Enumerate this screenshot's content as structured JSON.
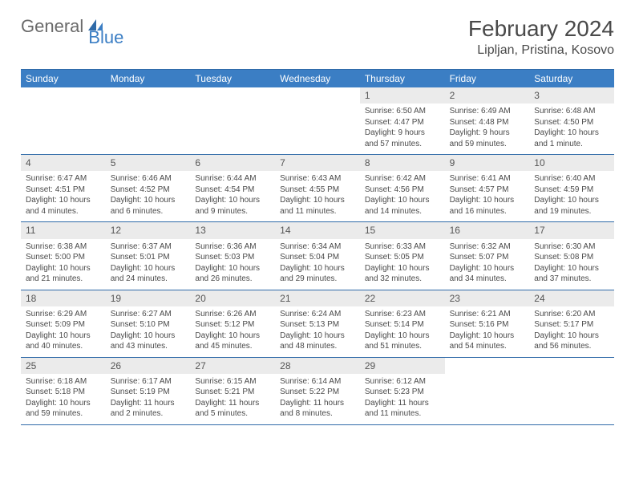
{
  "brand": {
    "general": "General",
    "blue": "Blue"
  },
  "title": "February 2024",
  "location": "Lipljan, Pristina, Kosovo",
  "colors": {
    "header_bg": "#3b7ec4",
    "header_text": "#ffffff",
    "border": "#2f6aa8",
    "daynum_bg": "#ebebeb",
    "text": "#4a4a4a",
    "page_bg": "#ffffff"
  },
  "dow": [
    "Sunday",
    "Monday",
    "Tuesday",
    "Wednesday",
    "Thursday",
    "Friday",
    "Saturday"
  ],
  "weeks": [
    [
      null,
      null,
      null,
      null,
      {
        "n": "1",
        "sr": "Sunrise: 6:50 AM",
        "ss": "Sunset: 4:47 PM",
        "dl": "Daylight: 9 hours and 57 minutes."
      },
      {
        "n": "2",
        "sr": "Sunrise: 6:49 AM",
        "ss": "Sunset: 4:48 PM",
        "dl": "Daylight: 9 hours and 59 minutes."
      },
      {
        "n": "3",
        "sr": "Sunrise: 6:48 AM",
        "ss": "Sunset: 4:50 PM",
        "dl": "Daylight: 10 hours and 1 minute."
      }
    ],
    [
      {
        "n": "4",
        "sr": "Sunrise: 6:47 AM",
        "ss": "Sunset: 4:51 PM",
        "dl": "Daylight: 10 hours and 4 minutes."
      },
      {
        "n": "5",
        "sr": "Sunrise: 6:46 AM",
        "ss": "Sunset: 4:52 PM",
        "dl": "Daylight: 10 hours and 6 minutes."
      },
      {
        "n": "6",
        "sr": "Sunrise: 6:44 AM",
        "ss": "Sunset: 4:54 PM",
        "dl": "Daylight: 10 hours and 9 minutes."
      },
      {
        "n": "7",
        "sr": "Sunrise: 6:43 AM",
        "ss": "Sunset: 4:55 PM",
        "dl": "Daylight: 10 hours and 11 minutes."
      },
      {
        "n": "8",
        "sr": "Sunrise: 6:42 AM",
        "ss": "Sunset: 4:56 PM",
        "dl": "Daylight: 10 hours and 14 minutes."
      },
      {
        "n": "9",
        "sr": "Sunrise: 6:41 AM",
        "ss": "Sunset: 4:57 PM",
        "dl": "Daylight: 10 hours and 16 minutes."
      },
      {
        "n": "10",
        "sr": "Sunrise: 6:40 AM",
        "ss": "Sunset: 4:59 PM",
        "dl": "Daylight: 10 hours and 19 minutes."
      }
    ],
    [
      {
        "n": "11",
        "sr": "Sunrise: 6:38 AM",
        "ss": "Sunset: 5:00 PM",
        "dl": "Daylight: 10 hours and 21 minutes."
      },
      {
        "n": "12",
        "sr": "Sunrise: 6:37 AM",
        "ss": "Sunset: 5:01 PM",
        "dl": "Daylight: 10 hours and 24 minutes."
      },
      {
        "n": "13",
        "sr": "Sunrise: 6:36 AM",
        "ss": "Sunset: 5:03 PM",
        "dl": "Daylight: 10 hours and 26 minutes."
      },
      {
        "n": "14",
        "sr": "Sunrise: 6:34 AM",
        "ss": "Sunset: 5:04 PM",
        "dl": "Daylight: 10 hours and 29 minutes."
      },
      {
        "n": "15",
        "sr": "Sunrise: 6:33 AM",
        "ss": "Sunset: 5:05 PM",
        "dl": "Daylight: 10 hours and 32 minutes."
      },
      {
        "n": "16",
        "sr": "Sunrise: 6:32 AM",
        "ss": "Sunset: 5:07 PM",
        "dl": "Daylight: 10 hours and 34 minutes."
      },
      {
        "n": "17",
        "sr": "Sunrise: 6:30 AM",
        "ss": "Sunset: 5:08 PM",
        "dl": "Daylight: 10 hours and 37 minutes."
      }
    ],
    [
      {
        "n": "18",
        "sr": "Sunrise: 6:29 AM",
        "ss": "Sunset: 5:09 PM",
        "dl": "Daylight: 10 hours and 40 minutes."
      },
      {
        "n": "19",
        "sr": "Sunrise: 6:27 AM",
        "ss": "Sunset: 5:10 PM",
        "dl": "Daylight: 10 hours and 43 minutes."
      },
      {
        "n": "20",
        "sr": "Sunrise: 6:26 AM",
        "ss": "Sunset: 5:12 PM",
        "dl": "Daylight: 10 hours and 45 minutes."
      },
      {
        "n": "21",
        "sr": "Sunrise: 6:24 AM",
        "ss": "Sunset: 5:13 PM",
        "dl": "Daylight: 10 hours and 48 minutes."
      },
      {
        "n": "22",
        "sr": "Sunrise: 6:23 AM",
        "ss": "Sunset: 5:14 PM",
        "dl": "Daylight: 10 hours and 51 minutes."
      },
      {
        "n": "23",
        "sr": "Sunrise: 6:21 AM",
        "ss": "Sunset: 5:16 PM",
        "dl": "Daylight: 10 hours and 54 minutes."
      },
      {
        "n": "24",
        "sr": "Sunrise: 6:20 AM",
        "ss": "Sunset: 5:17 PM",
        "dl": "Daylight: 10 hours and 56 minutes."
      }
    ],
    [
      {
        "n": "25",
        "sr": "Sunrise: 6:18 AM",
        "ss": "Sunset: 5:18 PM",
        "dl": "Daylight: 10 hours and 59 minutes."
      },
      {
        "n": "26",
        "sr": "Sunrise: 6:17 AM",
        "ss": "Sunset: 5:19 PM",
        "dl": "Daylight: 11 hours and 2 minutes."
      },
      {
        "n": "27",
        "sr": "Sunrise: 6:15 AM",
        "ss": "Sunset: 5:21 PM",
        "dl": "Daylight: 11 hours and 5 minutes."
      },
      {
        "n": "28",
        "sr": "Sunrise: 6:14 AM",
        "ss": "Sunset: 5:22 PM",
        "dl": "Daylight: 11 hours and 8 minutes."
      },
      {
        "n": "29",
        "sr": "Sunrise: 6:12 AM",
        "ss": "Sunset: 5:23 PM",
        "dl": "Daylight: 11 hours and 11 minutes."
      },
      null,
      null
    ]
  ]
}
